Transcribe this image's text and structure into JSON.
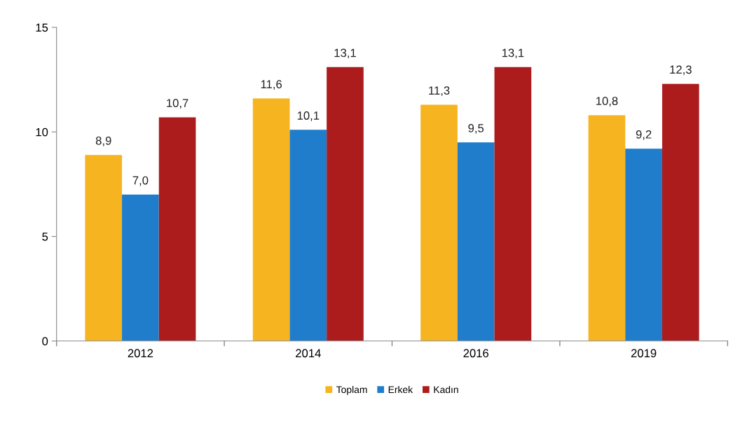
{
  "chart_data": {
    "type": "bar",
    "categories": [
      "2012",
      "2014",
      "2016",
      "2019"
    ],
    "series": [
      {
        "name": "Toplam",
        "color": "#f6b520",
        "values": [
          8.9,
          11.6,
          11.3,
          10.8
        ],
        "value_labels": [
          "8,9",
          "11,6",
          "11,3",
          "10,8"
        ]
      },
      {
        "name": "Erkek",
        "color": "#1f7dcb",
        "values": [
          7.0,
          10.1,
          9.5,
          9.2
        ],
        "value_labels": [
          "7,0",
          "10,1",
          "9,5",
          "9,2"
        ]
      },
      {
        "name": "Kadın",
        "color": "#ad1c1c",
        "values": [
          10.7,
          13.1,
          13.1,
          12.3
        ],
        "value_labels": [
          "10,7",
          "13,1",
          "13,1",
          "12,3"
        ]
      }
    ],
    "ylim": [
      0,
      15
    ],
    "yticks": [
      0,
      5,
      10,
      15
    ],
    "grid": false,
    "legend": "bottom"
  }
}
